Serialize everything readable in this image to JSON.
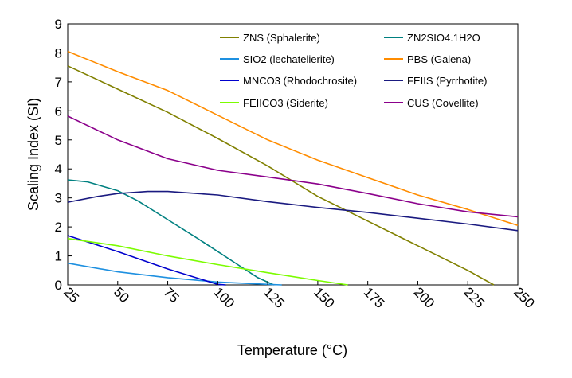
{
  "chart_data": {
    "type": "line",
    "xlabel": "Temperature (°C)",
    "ylabel": "Scaling Index (SI)",
    "xlim": [
      25,
      250
    ],
    "ylim": [
      0,
      9
    ],
    "xticks": [
      25,
      50,
      75,
      100,
      125,
      150,
      175,
      200,
      225,
      250
    ],
    "yticks": [
      0,
      1,
      2,
      3,
      4,
      5,
      6,
      7,
      8,
      9
    ],
    "legend_placement": "top-right",
    "grid": false,
    "series": [
      {
        "name": "ZNS (Sphalerite)",
        "color": "#808000",
        "x": [
          25,
          50,
          75,
          100,
          125,
          150,
          175,
          200,
          225,
          238
        ],
        "y": [
          7.55,
          6.75,
          5.95,
          5.05,
          4.1,
          3.05,
          2.2,
          1.35,
          0.5,
          0.0
        ]
      },
      {
        "name": "ZN2SIO4.1H2O",
        "color": "#008080",
        "x": [
          25,
          35,
          50,
          60,
          75,
          90,
          100,
          110,
          120,
          128
        ],
        "y": [
          3.62,
          3.55,
          3.25,
          2.9,
          2.25,
          1.6,
          1.15,
          0.7,
          0.25,
          0.0
        ]
      },
      {
        "name": "SIO2 (lechatelierite)",
        "color": "#1E90E0",
        "x": [
          25,
          50,
          75,
          100,
          125,
          132
        ],
        "y": [
          0.75,
          0.45,
          0.25,
          0.1,
          0.02,
          0.0
        ]
      },
      {
        "name": "PBS (Galena)",
        "color": "#FF8C00",
        "x": [
          25,
          50,
          75,
          100,
          125,
          150,
          175,
          200,
          225,
          250
        ],
        "y": [
          8.05,
          7.35,
          6.7,
          5.85,
          5.0,
          4.3,
          3.7,
          3.1,
          2.6,
          2.05
        ]
      },
      {
        "name": "MNCO3 (Rhodochrosite)",
        "color": "#0000CD",
        "x": [
          25,
          50,
          75,
          100,
          104
        ],
        "y": [
          1.7,
          1.15,
          0.55,
          0.02,
          0.0
        ]
      },
      {
        "name": "FEIIS (Pyrrhotite)",
        "color": "#1A1A80",
        "x": [
          25,
          40,
          50,
          65,
          75,
          100,
          125,
          150,
          175,
          200,
          225,
          250
        ],
        "y": [
          2.85,
          3.05,
          3.15,
          3.22,
          3.22,
          3.1,
          2.87,
          2.67,
          2.5,
          2.3,
          2.1,
          1.87
        ]
      },
      {
        "name": "FEIICO3 (Siderite)",
        "color": "#7CFC00",
        "x": [
          25,
          50,
          75,
          100,
          125,
          150,
          165
        ],
        "y": [
          1.6,
          1.35,
          1.0,
          0.7,
          0.42,
          0.15,
          0.0
        ]
      },
      {
        "name": "CUS (Covellite)",
        "color": "#8B008B",
        "x": [
          25,
          50,
          75,
          100,
          125,
          150,
          175,
          200,
          225,
          250
        ],
        "y": [
          5.82,
          5.0,
          4.35,
          3.95,
          3.72,
          3.48,
          3.15,
          2.8,
          2.52,
          2.35
        ]
      }
    ]
  }
}
